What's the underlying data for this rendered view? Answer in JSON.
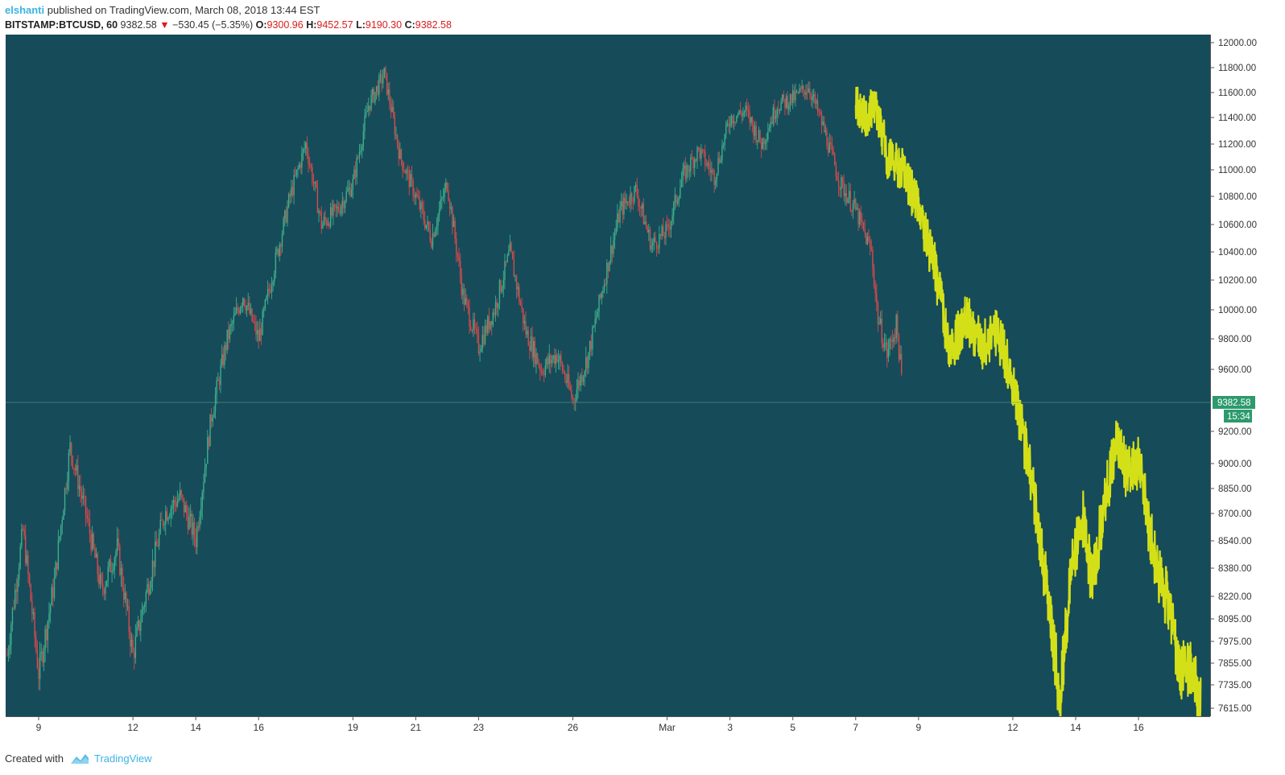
{
  "header": {
    "author": "elshanti",
    "published_text": "published on TradingView.com, March 08, 2018 13:44 EST",
    "symbol": "BITSTAMP:BTCUSD, 60",
    "last": "9382.58",
    "arrow": "▼",
    "change": "−530.45 (−5.35%)",
    "open_label": "O:",
    "open": "9300.96",
    "high_label": "H:",
    "high": "9452.57",
    "low_label": "L:",
    "low": "9190.30",
    "close_label": "C:",
    "close": "9382.58"
  },
  "footer": {
    "created": "Created with",
    "brand": "TradingView"
  },
  "colors": {
    "background": "#164b5a",
    "up": "#3fae8a",
    "down": "#d64a4a",
    "projection": "#d4e017",
    "price_tag": "#2c9a6d",
    "axis_text": "#333333"
  },
  "chart_data": {
    "type": "candlestick",
    "interval": "60",
    "x_axis_ticks": [
      "9",
      "12",
      "14",
      "16",
      "19",
      "21",
      "23",
      "26",
      "Mar",
      "3",
      "5",
      "7",
      "9",
      "12",
      "14",
      "16"
    ],
    "y_axis_ticks": [
      "12000.00",
      "11800.00",
      "11600.00",
      "11400.00",
      "11200.00",
      "11000.00",
      "10800.00",
      "10600.00",
      "10400.00",
      "10200.00",
      "10000.00",
      "9800.00",
      "9600.00",
      "9200.00",
      "9000.00",
      "8850.00",
      "8700.00",
      "8540.00",
      "8380.00",
      "8220.00",
      "8095.00",
      "7975.00",
      "7855.00",
      "7735.00",
      "7615.00"
    ],
    "current_price": "9382.58",
    "countdown": "15:34",
    "candle_path_daily": [
      {
        "x": 8.0,
        "p": 7900
      },
      {
        "x": 8.5,
        "p": 8600
      },
      {
        "x": 9.0,
        "p": 7800
      },
      {
        "x": 9.5,
        "p": 8300
      },
      {
        "x": 10.0,
        "p": 9100
      },
      {
        "x": 10.5,
        "p": 8700
      },
      {
        "x": 11.0,
        "p": 8250
      },
      {
        "x": 11.5,
        "p": 8500
      },
      {
        "x": 12.0,
        "p": 7900
      },
      {
        "x": 12.5,
        "p": 8300
      },
      {
        "x": 13.0,
        "p": 8700
      },
      {
        "x": 13.5,
        "p": 8800
      },
      {
        "x": 14.0,
        "p": 8550
      },
      {
        "x": 14.5,
        "p": 9300
      },
      {
        "x": 15.0,
        "p": 9800
      },
      {
        "x": 15.5,
        "p": 10100
      },
      {
        "x": 16.0,
        "p": 9800
      },
      {
        "x": 17.0,
        "p": 10800
      },
      {
        "x": 17.5,
        "p": 11200
      },
      {
        "x": 18.0,
        "p": 10600
      },
      {
        "x": 18.5,
        "p": 10700
      },
      {
        "x": 19.0,
        "p": 10900
      },
      {
        "x": 19.5,
        "p": 11500
      },
      {
        "x": 20.0,
        "p": 11750
      },
      {
        "x": 20.5,
        "p": 11100
      },
      {
        "x": 21.0,
        "p": 10800
      },
      {
        "x": 21.5,
        "p": 10500
      },
      {
        "x": 22.0,
        "p": 10900
      },
      {
        "x": 22.5,
        "p": 10100
      },
      {
        "x": 23.0,
        "p": 9750
      },
      {
        "x": 23.5,
        "p": 10000
      },
      {
        "x": 24.0,
        "p": 10400
      },
      {
        "x": 24.5,
        "p": 9850
      },
      {
        "x": 25.0,
        "p": 9600
      },
      {
        "x": 25.5,
        "p": 9700
      },
      {
        "x": 26.0,
        "p": 9400
      },
      {
        "x": 26.5,
        "p": 9700
      },
      {
        "x": 27.0,
        "p": 10200
      },
      {
        "x": 27.5,
        "p": 10700
      },
      {
        "x": 28.0,
        "p": 10850
      },
      {
        "x": 28.5,
        "p": 10450
      },
      {
        "x": 29.0,
        "p": 10550
      },
      {
        "x": 29.5,
        "p": 10950
      },
      {
        "x": 30.0,
        "p": 11150
      },
      {
        "x": 30.5,
        "p": 10950
      },
      {
        "x": 31.0,
        "p": 11400
      },
      {
        "x": 31.5,
        "p": 11450
      },
      {
        "x": 32.0,
        "p": 11200
      },
      {
        "x": 32.5,
        "p": 11500
      },
      {
        "x": 33.0,
        "p": 11550
      },
      {
        "x": 33.5,
        "p": 11650
      },
      {
        "x": 34.0,
        "p": 11300
      },
      {
        "x": 34.5,
        "p": 10900
      },
      {
        "x": 35.0,
        "p": 10700
      },
      {
        "x": 35.5,
        "p": 10400
      },
      {
        "x": 35.7,
        "p": 9950
      },
      {
        "x": 36.0,
        "p": 9700
      },
      {
        "x": 36.3,
        "p": 9900
      },
      {
        "x": 36.5,
        "p": 9450
      }
    ],
    "projection_path_daily": [
      {
        "x": 35.0,
        "p": 11500
      },
      {
        "x": 35.3,
        "p": 11400
      },
      {
        "x": 35.6,
        "p": 11500
      },
      {
        "x": 36.0,
        "p": 11100
      },
      {
        "x": 36.5,
        "p": 11000
      },
      {
        "x": 37.0,
        "p": 10700
      },
      {
        "x": 37.5,
        "p": 10300
      },
      {
        "x": 38.0,
        "p": 9700
      },
      {
        "x": 38.5,
        "p": 9950
      },
      {
        "x": 39.0,
        "p": 9750
      },
      {
        "x": 39.5,
        "p": 9850
      },
      {
        "x": 40.0,
        "p": 9500
      },
      {
        "x": 40.5,
        "p": 9000
      },
      {
        "x": 40.8,
        "p": 8600
      },
      {
        "x": 41.2,
        "p": 8100
      },
      {
        "x": 41.5,
        "p": 7650
      },
      {
        "x": 41.8,
        "p": 8300
      },
      {
        "x": 42.2,
        "p": 8700
      },
      {
        "x": 42.5,
        "p": 8300
      },
      {
        "x": 43.0,
        "p": 8850
      },
      {
        "x": 43.3,
        "p": 9150
      },
      {
        "x": 43.6,
        "p": 8950
      },
      {
        "x": 44.0,
        "p": 9000
      },
      {
        "x": 44.3,
        "p": 8650
      },
      {
        "x": 44.6,
        "p": 8350
      },
      {
        "x": 45.0,
        "p": 8150
      },
      {
        "x": 45.3,
        "p": 7800
      },
      {
        "x": 45.6,
        "p": 7850
      },
      {
        "x": 46.0,
        "p": 7600
      }
    ]
  }
}
